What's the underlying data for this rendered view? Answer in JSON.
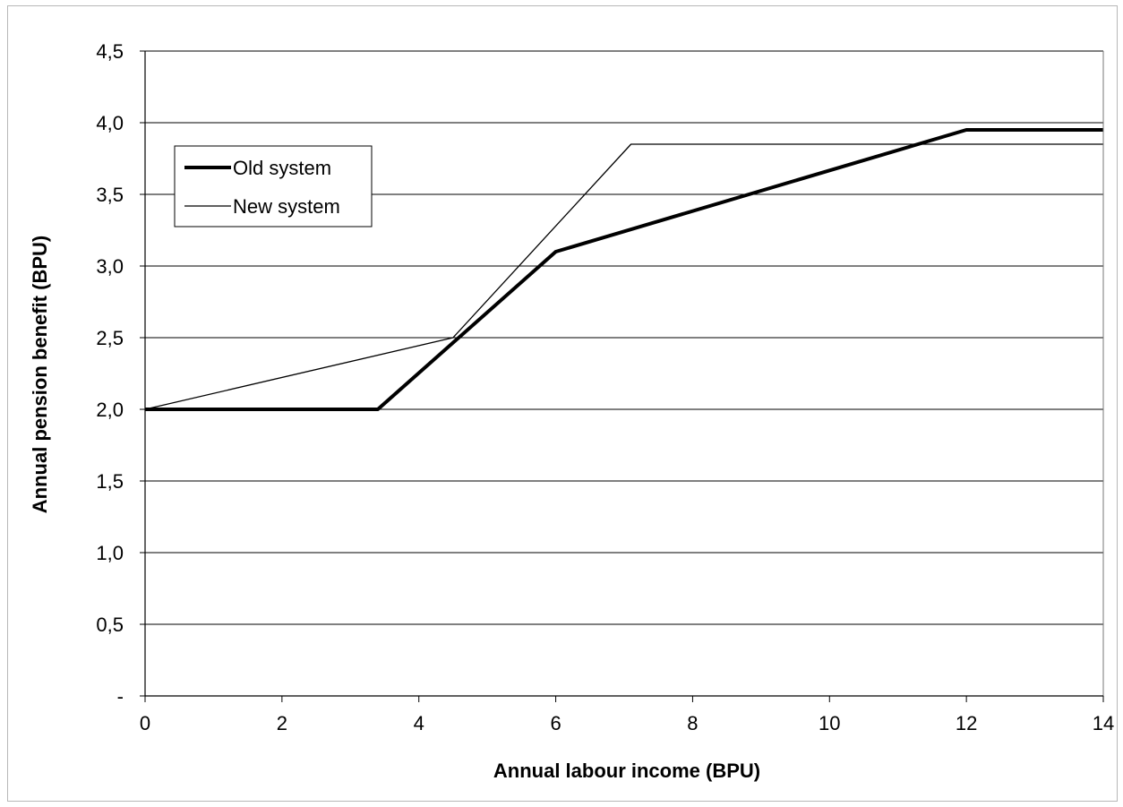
{
  "chart_data": {
    "type": "line",
    "xlabel": "Annual labour income (BPU)",
    "ylabel": "Annual pension benefit (BPU)",
    "xlim": [
      0,
      14
    ],
    "ylim": [
      0,
      4.5
    ],
    "x_ticks": [
      0,
      2,
      4,
      6,
      8,
      10,
      12,
      14
    ],
    "x_tick_labels": [
      "0",
      "2",
      "4",
      "6",
      "8",
      "10",
      "12",
      "14"
    ],
    "y_ticks": [
      0,
      0.5,
      1.0,
      1.5,
      2.0,
      2.5,
      3.0,
      3.5,
      4.0,
      4.5
    ],
    "y_tick_labels": [
      "-",
      "0,5",
      "1,0",
      "1,5",
      "2,0",
      "2,5",
      "3,0",
      "3,5",
      "4,0",
      "4,5"
    ],
    "grid": "horizontal",
    "legend_position": "top-left",
    "series": [
      {
        "name": "Old system",
        "style": "thick",
        "color": "#000000",
        "points": [
          [
            0,
            2.0
          ],
          [
            3.4,
            2.0
          ],
          [
            6.0,
            3.1
          ],
          [
            12.0,
            3.95
          ],
          [
            14,
            3.95
          ]
        ]
      },
      {
        "name": "New system",
        "style": "thin",
        "color": "#000000",
        "points": [
          [
            0,
            2.0
          ],
          [
            4.5,
            2.5
          ],
          [
            7.1,
            3.85
          ],
          [
            14,
            3.85
          ]
        ]
      }
    ]
  }
}
